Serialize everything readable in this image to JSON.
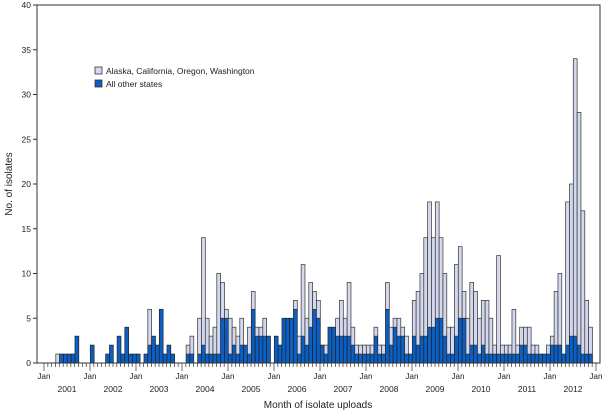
{
  "chart_data": {
    "type": "bar",
    "stacked": true,
    "xlabel": "Month of isolate uploads",
    "ylabel": "No. of isolates",
    "ylim": [
      0,
      40
    ],
    "yticks": [
      0,
      5,
      10,
      15,
      20,
      25,
      30,
      35,
      40
    ],
    "month_tick_label": "Jan",
    "years": [
      "2001",
      "2002",
      "2003",
      "2004",
      "2005",
      "2006",
      "2007",
      "2008",
      "2009",
      "2010",
      "2011",
      "2012"
    ],
    "legend_placement": "top-left",
    "grid": false,
    "series": [
      {
        "name": "All other states",
        "color": "#0a5fc4",
        "values": [
          0,
          0,
          0,
          0,
          1,
          1,
          1,
          1,
          3,
          0,
          0,
          0,
          2,
          0,
          0,
          0,
          1,
          2,
          0,
          3,
          1,
          4,
          1,
          1,
          1,
          0,
          1,
          2,
          3,
          2,
          6,
          1,
          2,
          1,
          0,
          0,
          0,
          1,
          1,
          0,
          1,
          2,
          1,
          1,
          1,
          1,
          5,
          5,
          1,
          2,
          1,
          2,
          2,
          1,
          6,
          3,
          3,
          3,
          3,
          0,
          3,
          2,
          5,
          5,
          5,
          6,
          1,
          3,
          2,
          4,
          6,
          5,
          2,
          1,
          4,
          4,
          3,
          3,
          3,
          3,
          2,
          1,
          1,
          1,
          1,
          1,
          3,
          1,
          1,
          6,
          2,
          4,
          3,
          3,
          1,
          1,
          3,
          2,
          3,
          3,
          4,
          4,
          5,
          5,
          3,
          1,
          1,
          3,
          5,
          5,
          1,
          2,
          2,
          1,
          2,
          1,
          1,
          1,
          1,
          1,
          1,
          1,
          1,
          1,
          2,
          2,
          1,
          1,
          1,
          1,
          1,
          1,
          2,
          2,
          2,
          1,
          2,
          3,
          3,
          2,
          1,
          1,
          1,
          0
        ]
      },
      {
        "name": "Alaska, California, Oregon, Washington",
        "color": "#d4d8ee",
        "values": [
          0,
          0,
          0,
          1,
          0,
          0,
          0,
          0,
          0,
          0,
          0,
          0,
          0,
          0,
          0,
          0,
          0,
          0,
          0,
          0,
          0,
          0,
          0,
          0,
          0,
          0,
          0,
          4,
          0,
          0,
          0,
          0,
          0,
          0,
          0,
          0,
          0,
          1,
          2,
          0,
          4,
          12,
          4,
          2,
          3,
          9,
          4,
          1,
          4,
          2,
          2,
          3,
          0,
          3,
          2,
          1,
          1,
          2,
          0,
          0,
          0,
          0,
          0,
          0,
          0,
          1,
          2,
          8,
          3,
          5,
          2,
          2,
          0,
          1,
          0,
          0,
          2,
          4,
          2,
          6,
          2,
          1,
          1,
          1,
          1,
          1,
          1,
          1,
          1,
          3,
          2,
          1,
          2,
          1,
          2,
          0,
          4,
          6,
          7,
          11,
          14,
          10,
          13,
          9,
          7,
          3,
          3,
          8,
          8,
          3,
          4,
          7,
          6,
          4,
          5,
          6,
          4,
          1,
          11,
          1,
          1,
          1,
          5,
          1,
          2,
          2,
          3,
          1,
          1,
          0,
          0,
          1,
          1,
          6,
          8,
          0,
          16,
          17,
          31,
          26,
          16,
          6,
          3,
          0
        ]
      }
    ]
  }
}
